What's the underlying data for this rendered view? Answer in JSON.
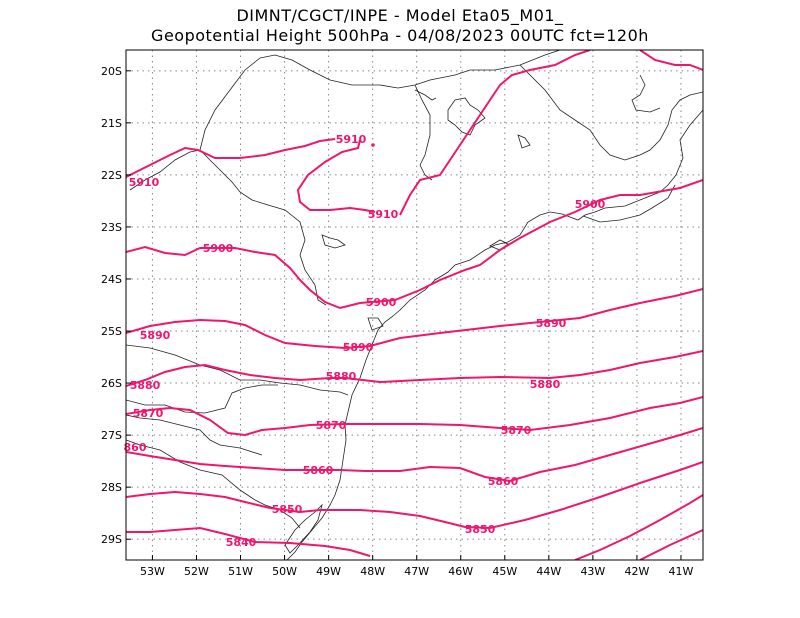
{
  "title_line1": "DIMNT/CGCT/INPE  -   Model Eta05_M01_",
  "title_line2": "Geopotential Height 500hPa  -   04/08/2023 00UTC fct=120h",
  "colors": {
    "contour": "#f0166e",
    "coast": "#222222",
    "grid": "#888888",
    "frame": "#000000"
  },
  "map": {
    "lon_range": [
      -53.6,
      -40.5
    ],
    "lat_range": [
      -29.4,
      -19.6
    ],
    "lat_ticks": [
      {
        "value": -20,
        "label": "20S"
      },
      {
        "value": -21,
        "label": "21S"
      },
      {
        "value": -22,
        "label": "22S"
      },
      {
        "value": -23,
        "label": "23S"
      },
      {
        "value": -24,
        "label": "24S"
      },
      {
        "value": -25,
        "label": "25S"
      },
      {
        "value": -26,
        "label": "26S"
      },
      {
        "value": -27,
        "label": "27S"
      },
      {
        "value": -28,
        "label": "28S"
      },
      {
        "value": -29,
        "label": "29S"
      }
    ],
    "lon_ticks": [
      {
        "value": -53,
        "label": "53W"
      },
      {
        "value": -52,
        "label": "52W"
      },
      {
        "value": -51,
        "label": "51W"
      },
      {
        "value": -50,
        "label": "50W"
      },
      {
        "value": -49,
        "label": "49W"
      },
      {
        "value": -48,
        "label": "48W"
      },
      {
        "value": -47,
        "label": "47W"
      },
      {
        "value": -46,
        "label": "46W"
      },
      {
        "value": -45,
        "label": "45W"
      },
      {
        "value": -44,
        "label": "44W"
      },
      {
        "value": -43,
        "label": "43W"
      },
      {
        "value": -42,
        "label": "42W"
      },
      {
        "value": -41,
        "label": "41W"
      }
    ]
  },
  "contour_labels": [
    {
      "id": "L1",
      "text": "5910"
    },
    {
      "id": "L2",
      "text": "5910"
    },
    {
      "id": "L3",
      "text": "5910"
    },
    {
      "id": "L4",
      "text": "5900"
    },
    {
      "id": "L5",
      "text": "5900"
    },
    {
      "id": "L6",
      "text": "5900"
    },
    {
      "id": "L7",
      "text": "5890"
    },
    {
      "id": "L8",
      "text": "5890"
    },
    {
      "id": "L9",
      "text": "5890"
    },
    {
      "id": "L10",
      "text": "5880"
    },
    {
      "id": "L11",
      "text": "5880"
    },
    {
      "id": "L12",
      "text": "5880"
    },
    {
      "id": "L13",
      "text": "5870"
    },
    {
      "id": "L14",
      "text": "5870"
    },
    {
      "id": "L15",
      "text": "5870"
    },
    {
      "id": "L16",
      "text": "860"
    },
    {
      "id": "L17",
      "text": "5860"
    },
    {
      "id": "L18",
      "text": "5860"
    },
    {
      "id": "L19",
      "text": "5850"
    },
    {
      "id": "L20",
      "text": "5850"
    },
    {
      "id": "L21",
      "text": "5840"
    }
  ]
}
